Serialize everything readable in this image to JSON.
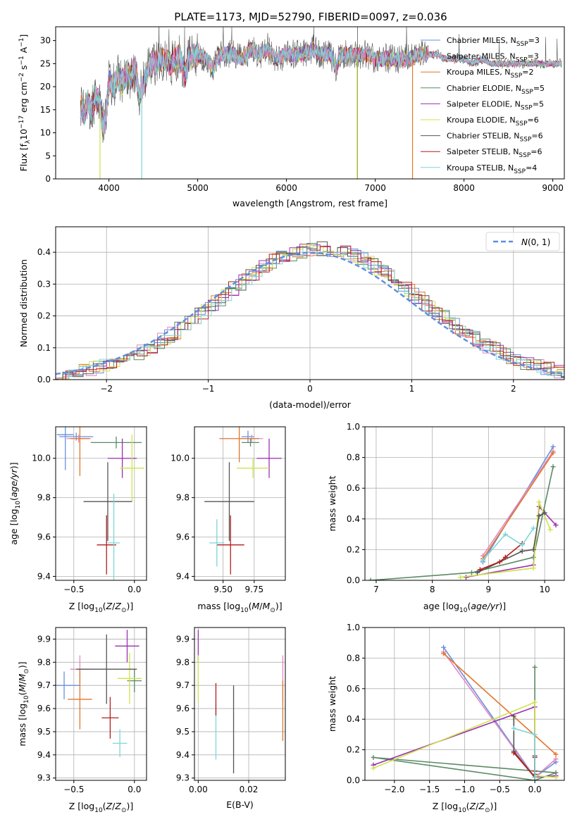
{
  "figure_title": "PLATE=1173, MJD=52790, FIBERID=0097, z=0.036",
  "series": [
    {
      "name": "Chabrier MILES",
      "nssp": "3",
      "color": "#6a8fdc"
    },
    {
      "name": "Salpeter MILES",
      "nssp": "3",
      "color": "#e588c2"
    },
    {
      "name": "Kroupa MILES",
      "nssp": "2",
      "color": "#e2772b"
    },
    {
      "name": "Chabrier ELODIE",
      "nssp": "5",
      "color": "#5b8a64"
    },
    {
      "name": "Salpeter ELODIE",
      "nssp": "5",
      "color": "#9b30b2"
    },
    {
      "name": "Kroupa ELODIE",
      "nssp": "6",
      "color": "#cfe34a"
    },
    {
      "name": "Chabrier STELIB",
      "nssp": "6",
      "color": "#555555"
    },
    {
      "name": "Salpeter STELIB",
      "nssp": "6",
      "color": "#b21e1e"
    },
    {
      "name": "Kroupa STELIB",
      "nssp": "4",
      "color": "#7fd6d6"
    }
  ],
  "chart_data": [
    {
      "id": "spectrum",
      "type": "line",
      "title": "PLATE=1173, MJD=52790, FIBERID=0097, z=0.036",
      "xlabel": "wavelength [Angstrom, rest frame]",
      "ylabel": "Flux [f_λ 10^-17 erg cm^-2 s^-1 A^-1]",
      "xlim": [
        3400,
        9130
      ],
      "ylim": [
        0,
        33
      ],
      "xticks": [
        4000,
        5000,
        6000,
        7000,
        8000,
        9000
      ],
      "yticks": [
        0,
        5,
        10,
        15,
        20,
        25,
        30
      ],
      "grid": false,
      "legend": "upper-right",
      "x": [
        3680,
        3720,
        3760,
        3800,
        3850,
        3900,
        3930,
        3960,
        4000,
        4050,
        4100,
        4150,
        4200,
        4250,
        4300,
        4340,
        4380,
        4450,
        4500,
        4600,
        4700,
        4800,
        4860,
        4900,
        5000,
        5100,
        5175,
        5250,
        5400,
        5500,
        5600,
        5700,
        5800,
        5890,
        6000,
        6100,
        6200,
        6300,
        6400,
        6500,
        6563,
        6600,
        6700,
        6800,
        6900,
        7000,
        7100,
        7200,
        7300,
        7400,
        7500,
        7600,
        7700,
        7800,
        7900,
        8000,
        8100,
        8200,
        8300,
        8400,
        8500,
        8600,
        8700,
        8800,
        8900,
        9000,
        9100
      ],
      "y": [
        16,
        14,
        17,
        15,
        18,
        16,
        11,
        13,
        21,
        20,
        22,
        21,
        23,
        22,
        24,
        18,
        20,
        24,
        25,
        26,
        25,
        27,
        22,
        26,
        27,
        26,
        24,
        27,
        27,
        26,
        28,
        27,
        28,
        26,
        27,
        27,
        27,
        28,
        27,
        27,
        24,
        27,
        27,
        27,
        27,
        26,
        26,
        26,
        26,
        26,
        27,
        27,
        27,
        26,
        26,
        26,
        25,
        26,
        25,
        25,
        25,
        25,
        25,
        25,
        25,
        25,
        25
      ],
      "sky_line_wavelength": 6800,
      "drop_lines": [
        {
          "series": "Kroupa ELODIE",
          "x": 3900
        },
        {
          "series": "Kroupa STELIB",
          "x": 4370
        },
        {
          "series": "Kroupa ELODIE",
          "x": 6795
        },
        {
          "series": "Kroupa MILES",
          "x": 7420
        }
      ]
    },
    {
      "id": "residuals",
      "type": "histogram",
      "xlabel": "(data-model)/error",
      "ylabel": "Normed distribution",
      "xlim": [
        -2.5,
        2.5
      ],
      "ylim": [
        0,
        0.48
      ],
      "xticks": [
        -2,
        -1,
        0,
        1,
        2
      ],
      "yticks": [
        0,
        0.1,
        0.2,
        0.3,
        0.4
      ],
      "grid": true,
      "legend": "upper-right",
      "reference_curve": {
        "label": "N(0,1)",
        "mean": 0,
        "std": 1,
        "color": "#5b8fdc"
      },
      "bin_width": 0.1
    },
    {
      "id": "age-vs-Z",
      "type": "errorbar",
      "xlabel": "Z [log10(Z/Z☉)]",
      "ylabel": "age [log10(age/yr)]",
      "xlim": [
        -0.65,
        0.1
      ],
      "ylim": [
        9.38,
        10.16
      ],
      "xticks": [
        -0.5,
        0.0
      ],
      "xticklabels": [
        "−0.5",
        "0.0"
      ],
      "yticks": [
        9.4,
        9.6,
        9.8,
        10.0
      ],
      "grid": true,
      "points": [
        {
          "series": "Chabrier MILES",
          "x": -0.57,
          "xerr": 0.07,
          "y": 10.12,
          "yerr": 0.18
        },
        {
          "series": "Chabrier MILES",
          "x": -0.48,
          "xerr": 0.14,
          "y": 10.11,
          "yerr": 0.02
        },
        {
          "series": "Salpeter MILES",
          "x": -0.46,
          "xerr": 0.1,
          "y": 10.1,
          "yerr": 0.02
        },
        {
          "series": "Kroupa MILES",
          "x": -0.45,
          "xerr": 0.08,
          "y": 10.1,
          "yerr": 0.19
        },
        {
          "series": "Chabrier ELODIE",
          "x": -0.15,
          "xerr": 0.21,
          "y": 10.08,
          "yerr": 0.03
        },
        {
          "series": "Salpeter ELODIE",
          "x": -0.1,
          "xerr": 0.12,
          "y": 10.0,
          "yerr": 0.1
        },
        {
          "series": "Kroupa ELODIE",
          "x": -0.02,
          "xerr": 0.1,
          "y": 9.95,
          "yerr": 0.17
        },
        {
          "series": "Chabrier STELIB",
          "x": -0.22,
          "xerr": 0.2,
          "y": 9.78,
          "yerr": 0.2
        },
        {
          "series": "Salpeter STELIB",
          "x": -0.23,
          "xerr": 0.08,
          "y": 9.56,
          "yerr": 0.15
        },
        {
          "series": "Kroupa STELIB",
          "x": -0.17,
          "xerr": 0.05,
          "y": 9.57,
          "yerr": 0.25
        }
      ]
    },
    {
      "id": "age-vs-mass",
      "type": "errorbar",
      "xlabel": "mass [log10(M/M☉)]",
      "ylabel": "",
      "xlim": [
        9.27,
        10.0
      ],
      "ylim": [
        9.38,
        10.16
      ],
      "xticks": [
        9.5,
        9.75
      ],
      "xticklabels": [
        "9.50",
        "9.75"
      ],
      "yticks": [
        9.4,
        9.6,
        9.8,
        10.0
      ],
      "grid": true,
      "points": [
        {
          "series": "Chabrier MILES",
          "x": 9.7,
          "xerr": 0.05,
          "y": 10.11,
          "yerr": 0.03
        },
        {
          "series": "Salpeter MILES",
          "x": 9.73,
          "xerr": 0.09,
          "y": 10.1,
          "yerr": 0.02
        },
        {
          "series": "Kroupa MILES",
          "x": 9.63,
          "xerr": 0.16,
          "y": 10.1,
          "yerr": 0.12
        },
        {
          "series": "Chabrier ELODIE",
          "x": 9.72,
          "xerr": 0.07,
          "y": 10.08,
          "yerr": 0.02
        },
        {
          "series": "Salpeter ELODIE",
          "x": 9.87,
          "xerr": 0.1,
          "y": 10.0,
          "yerr": 0.1
        },
        {
          "series": "Kroupa ELODIE",
          "x": 9.74,
          "xerr": 0.13,
          "y": 9.95,
          "yerr": 0.05
        },
        {
          "series": "Chabrier STELIB",
          "x": 9.55,
          "xerr": 0.2,
          "y": 9.78,
          "yerr": 0.2
        },
        {
          "series": "Salpeter STELIB",
          "x": 9.56,
          "xerr": 0.11,
          "y": 9.56,
          "yerr": 0.15
        },
        {
          "series": "Kroupa STELIB",
          "x": 9.45,
          "xerr": 0.06,
          "y": 9.57,
          "yerr": 0.12
        }
      ]
    },
    {
      "id": "weight-vs-age",
      "type": "line",
      "xlabel": "age [log10(age/yr)]",
      "ylabel": "mass weight",
      "xlim": [
        6.8,
        10.35
      ],
      "ylim": [
        0,
        1.0
      ],
      "xticks": [
        7,
        8,
        9,
        10
      ],
      "yticks": [
        0.0,
        0.2,
        0.4,
        0.6,
        0.8,
        1.0
      ],
      "grid": true,
      "series_points": [
        {
          "series": "Chabrier MILES",
          "x": [
            8.9,
            10.15
          ],
          "y": [
            0.12,
            0.87
          ]
        },
        {
          "series": "Salpeter MILES",
          "x": [
            8.9,
            10.15
          ],
          "y": [
            0.16,
            0.84
          ]
        },
        {
          "series": "Kroupa MILES",
          "x": [
            8.9,
            10.15
          ],
          "y": [
            0.14,
            0.83
          ]
        },
        {
          "series": "Chabrier ELODIE",
          "x": [
            6.9,
            8.7,
            9.8,
            10.15
          ],
          "y": [
            0.0,
            0.05,
            0.15,
            0.74
          ]
        },
        {
          "series": "Salpeter ELODIE",
          "x": [
            8.6,
            9.8,
            9.9,
            10.2
          ],
          "y": [
            0.02,
            0.1,
            0.48,
            0.36
          ]
        },
        {
          "series": "Kroupa ELODIE",
          "x": [
            8.5,
            9.8,
            9.9,
            10.1
          ],
          "y": [
            0.02,
            0.08,
            0.51,
            0.33
          ]
        },
        {
          "series": "Chabrier STELIB",
          "x": [
            8.8,
            9.6,
            9.8,
            9.9,
            10.0
          ],
          "y": [
            0.05,
            0.19,
            0.2,
            0.42,
            0.44
          ]
        },
        {
          "series": "Salpeter STELIB",
          "x": [
            8.85,
            9.2,
            9.3,
            9.6
          ],
          "y": [
            0.07,
            0.12,
            0.15,
            0.24
          ]
        },
        {
          "series": "Kroupa STELIB",
          "x": [
            8.9,
            9.3,
            9.6,
            9.8
          ],
          "y": [
            0.13,
            0.3,
            0.23,
            0.34
          ]
        }
      ]
    },
    {
      "id": "mass-vs-Z",
      "type": "errorbar",
      "xlabel": "Z [log10(Z/Z☉)]",
      "ylabel": "mass [log10(M/M☉)]",
      "xlim": [
        -0.65,
        0.1
      ],
      "ylim": [
        9.29,
        9.95
      ],
      "xticks": [
        -0.5,
        0.0
      ],
      "xticklabels": [
        "−0.5",
        "0.0"
      ],
      "yticks": [
        9.3,
        9.4,
        9.5,
        9.6,
        9.7,
        9.8,
        9.9
      ],
      "grid": true,
      "points": [
        {
          "series": "Chabrier MILES",
          "x": -0.58,
          "xerr": 0.13,
          "y": 9.7,
          "yerr": 0.06
        },
        {
          "series": "Salpeter MILES",
          "x": -0.45,
          "xerr": 0.08,
          "y": 9.77,
          "yerr": 0.06
        },
        {
          "series": "Kroupa MILES",
          "x": -0.45,
          "xerr": 0.1,
          "y": 9.64,
          "yerr": 0.13
        },
        {
          "series": "Chabrier ELODIE",
          "x": 0.0,
          "xerr": 0.06,
          "y": 9.72,
          "yerr": 0.05
        },
        {
          "series": "Salpeter ELODIE",
          "x": -0.06,
          "xerr": 0.1,
          "y": 9.87,
          "yerr": 0.07
        },
        {
          "series": "Kroupa ELODIE",
          "x": -0.04,
          "xerr": 0.1,
          "y": 9.73,
          "yerr": 0.11
        },
        {
          "series": "Chabrier STELIB",
          "x": -0.23,
          "xerr": 0.25,
          "y": 9.77,
          "yerr": 0.15
        },
        {
          "series": "Salpeter STELIB",
          "x": -0.2,
          "xerr": 0.07,
          "y": 9.56,
          "yerr": 0.09
        },
        {
          "series": "Kroupa STELIB",
          "x": -0.12,
          "xerr": 0.06,
          "y": 9.45,
          "yerr": 0.06
        }
      ]
    },
    {
      "id": "mass-vs-ebv",
      "type": "errorbar",
      "xlabel": "E(B-V)",
      "ylabel": "",
      "xlim": [
        -0.0015,
        0.0345
      ],
      "ylim": [
        9.29,
        9.95
      ],
      "xticks": [
        0.0,
        0.02
      ],
      "xticklabels": [
        "0.00",
        "0.02"
      ],
      "yticks": [
        9.3,
        9.4,
        9.5,
        9.6,
        9.7,
        9.8,
        9.9
      ],
      "grid": true,
      "points": [
        {
          "series": "Salpeter ELODIE",
          "x": 0.0,
          "xerr": 0,
          "y": 9.87,
          "yerr": 0.07
        },
        {
          "series": "Kroupa ELODIE",
          "x": 0.0,
          "xerr": 0,
          "y": 9.73,
          "yerr": 0.1
        },
        {
          "series": "Kroupa STELIB",
          "x": 0.007,
          "xerr": 0,
          "y": 9.5,
          "yerr": 0.12
        },
        {
          "series": "Salpeter STELIB",
          "x": 0.007,
          "xerr": 0,
          "y": 9.64,
          "yerr": 0.07
        },
        {
          "series": "Chabrier STELIB",
          "x": 0.014,
          "xerr": 0,
          "y": 9.51,
          "yerr": 0.19
        },
        {
          "series": "Salpeter MILES",
          "x": 0.0335,
          "xerr": 0,
          "y": 9.73,
          "yerr": 0.1
        },
        {
          "series": "Kroupa MILES",
          "x": 0.0335,
          "xerr": 0,
          "y": 9.59,
          "yerr": 0.13
        }
      ]
    },
    {
      "id": "weight-vs-Z",
      "type": "line",
      "xlabel": "Z [log10(Z/Z☉)]",
      "ylabel": "mass weight",
      "xlim": [
        -2.42,
        0.42
      ],
      "ylim": [
        0,
        1.0
      ],
      "xticks": [
        -2.0,
        -1.5,
        -1.0,
        -0.5,
        0.0
      ],
      "xticklabels": [
        "−2.0",
        "−1.5",
        "−1.0",
        "−0.5",
        "0.0"
      ],
      "yticks": [
        0.0,
        0.2,
        0.4,
        0.6,
        0.8,
        1.0
      ],
      "grid": true,
      "series_points": [
        {
          "series": "Chabrier MILES",
          "x": [
            -1.3,
            0.0,
            0.3
          ],
          "y": [
            0.87,
            0.02,
            0.12
          ]
        },
        {
          "series": "Salpeter MILES",
          "x": [
            -1.3,
            0.0,
            0.3
          ],
          "y": [
            0.84,
            0.02,
            0.14
          ]
        },
        {
          "series": "Kroupa MILES",
          "x": [
            -1.3,
            0.3
          ],
          "y": [
            0.83,
            0.17
          ]
        },
        {
          "series": "Chabrier ELODIE",
          "x": [
            0.0,
            0.0,
            0.3,
            -2.3,
            0.0
          ],
          "y": [
            0.74,
            0.0,
            0.05,
            0.15,
            0.0
          ]
        },
        {
          "series": "Salpeter ELODIE",
          "x": [
            -2.3,
            0.0,
            0.0,
            0.3
          ],
          "y": [
            0.1,
            0.48,
            0.02,
            0.03
          ]
        },
        {
          "series": "Kroupa ELODIE",
          "x": [
            -2.3,
            0.0,
            0.0,
            0.3
          ],
          "y": [
            0.08,
            0.51,
            0.03,
            0.02
          ]
        },
        {
          "series": "Chabrier STELIB",
          "x": [
            -0.3,
            -0.3,
            0.0,
            0.0,
            0.0
          ],
          "y": [
            0.42,
            0.19,
            0.02,
            0.04,
            0.16
          ]
        },
        {
          "series": "Salpeter STELIB",
          "x": [
            -0.3,
            0.0,
            0.0,
            0.0
          ],
          "y": [
            0.18,
            0.02,
            0.06,
            0.15
          ]
        },
        {
          "series": "Kroupa STELIB",
          "x": [
            -0.3,
            0.0,
            0.0
          ],
          "y": [
            0.34,
            0.3,
            0.02
          ]
        }
      ]
    }
  ]
}
